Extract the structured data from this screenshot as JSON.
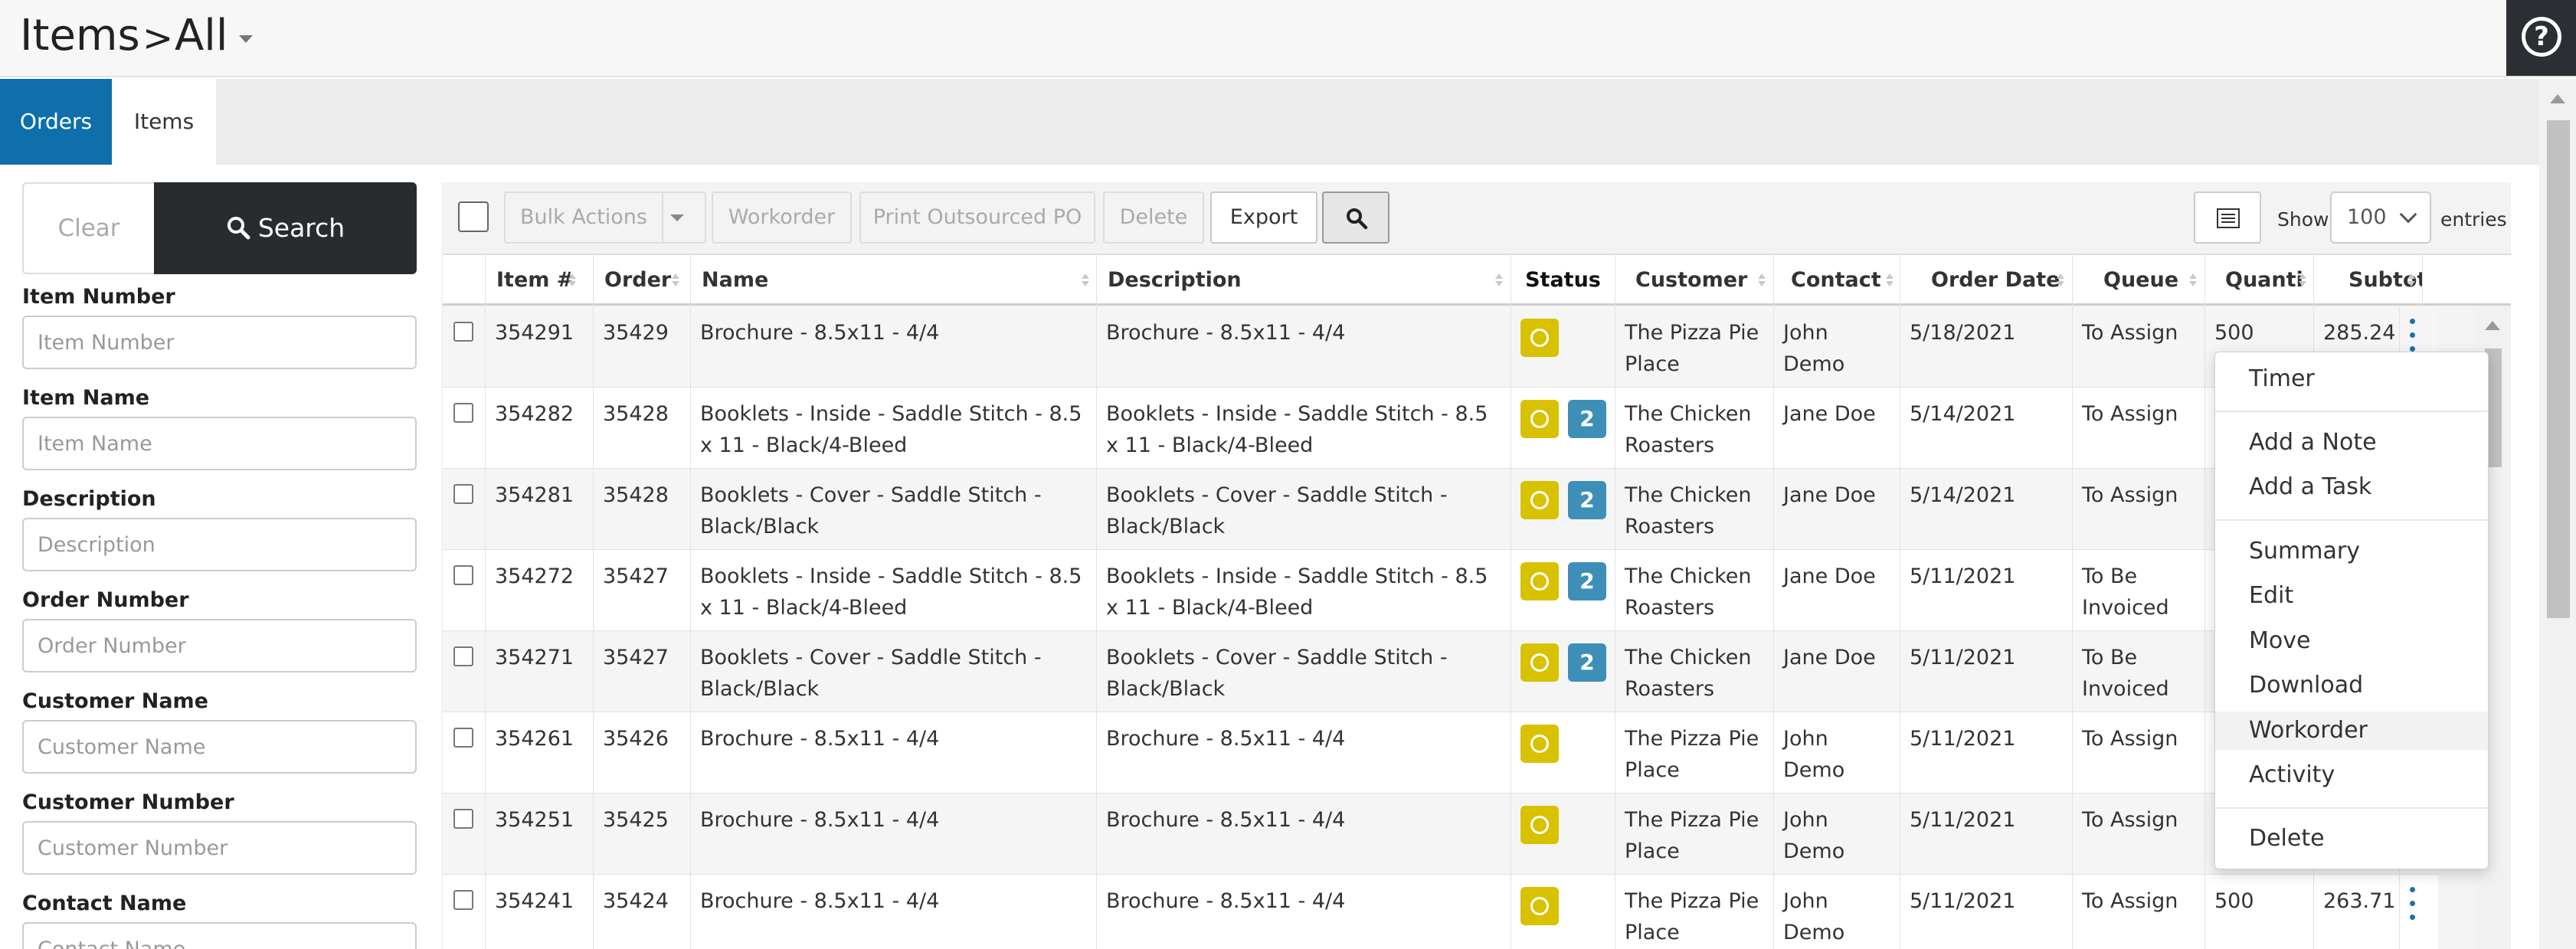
{
  "header": {
    "title": "Items",
    "breadcrumb_sep": ">",
    "breadcrumb_current": "All",
    "help_label": "?"
  },
  "tabs": [
    {
      "label": "Orders",
      "active": true
    },
    {
      "label": "Items",
      "active": false
    }
  ],
  "filters": {
    "clear_label": "Clear",
    "search_label": "Search",
    "fields": [
      {
        "label": "Item Number",
        "placeholder": "Item Number"
      },
      {
        "label": "Item Name",
        "placeholder": "Item Name"
      },
      {
        "label": "Description",
        "placeholder": "Description"
      },
      {
        "label": "Order Number",
        "placeholder": "Order Number"
      },
      {
        "label": "Customer Name",
        "placeholder": "Customer Name"
      },
      {
        "label": "Customer Number",
        "placeholder": "Customer Number"
      },
      {
        "label": "Contact Name",
        "placeholder": "Contact Name"
      }
    ]
  },
  "toolbar": {
    "bulk_actions": "Bulk Actions",
    "workorder": "Workorder",
    "print_outsourced_po": "Print Outsourced PO",
    "delete": "Delete",
    "export": "Export",
    "show_label": "Show",
    "show_value": "100",
    "entries_label": "entries"
  },
  "table": {
    "columns": [
      "Item #",
      "Order",
      "Name",
      "Description",
      "Status",
      "Customer",
      "Contact",
      "Order Date",
      "Queue",
      "Quanti",
      "Subtot"
    ],
    "rows": [
      {
        "item": "354291",
        "order": "35429",
        "name": "Brochure - 8.5x11 - 4/4",
        "description": "Brochure - 8.5x11 - 4/4",
        "count": "",
        "customer": "The Pizza Pie Place",
        "contact": "John Demo",
        "date": "5/18/2021",
        "queue": "To Assign",
        "qty": "500",
        "subtotal": "285.24"
      },
      {
        "item": "354282",
        "order": "35428",
        "name": "Booklets - Inside - Saddle Stitch - 8.5 x 11 - Black/4-Bleed",
        "description": "Booklets - Inside - Saddle Stitch - 8.5 x 11 - Black/4-Bleed",
        "count": "2",
        "customer": "The Chicken Roasters",
        "contact": "Jane Doe",
        "date": "5/14/2021",
        "queue": "To Assign",
        "qty": "",
        "subtotal": ""
      },
      {
        "item": "354281",
        "order": "35428",
        "name": "Booklets - Cover - Saddle Stitch - Black/Black",
        "description": "Booklets - Cover - Saddle Stitch - Black/Black",
        "count": "2",
        "customer": "The Chicken Roasters",
        "contact": "Jane Doe",
        "date": "5/14/2021",
        "queue": "To Assign",
        "qty": "",
        "subtotal": ""
      },
      {
        "item": "354272",
        "order": "35427",
        "name": "Booklets - Inside - Saddle Stitch - 8.5 x 11 - Black/4-Bleed",
        "description": "Booklets - Inside - Saddle Stitch - 8.5 x 11 - Black/4-Bleed",
        "count": "2",
        "customer": "The Chicken Roasters",
        "contact": "Jane Doe",
        "date": "5/11/2021",
        "queue": "To Be Invoiced",
        "qty": "",
        "subtotal": ""
      },
      {
        "item": "354271",
        "order": "35427",
        "name": "Booklets - Cover - Saddle Stitch - Black/Black",
        "description": "Booklets - Cover - Saddle Stitch - Black/Black",
        "count": "2",
        "customer": "The Chicken Roasters",
        "contact": "Jane Doe",
        "date": "5/11/2021",
        "queue": "To Be Invoiced",
        "qty": "",
        "subtotal": ""
      },
      {
        "item": "354261",
        "order": "35426",
        "name": "Brochure - 8.5x11 - 4/4",
        "description": "Brochure - 8.5x11 - 4/4",
        "count": "",
        "customer": "The Pizza Pie Place",
        "contact": "John Demo",
        "date": "5/11/2021",
        "queue": "To Assign",
        "qty": "",
        "subtotal": ""
      },
      {
        "item": "354251",
        "order": "35425",
        "name": "Brochure - 8.5x11 - 4/4",
        "description": "Brochure - 8.5x11 - 4/4",
        "count": "",
        "customer": "The Pizza Pie Place",
        "contact": "John Demo",
        "date": "5/11/2021",
        "queue": "To Assign",
        "qty": "",
        "subtotal": ""
      },
      {
        "item": "354241",
        "order": "35424",
        "name": "Brochure - 8.5x11 - 4/4",
        "description": "Brochure - 8.5x11 - 4/4",
        "count": "",
        "customer": "The Pizza Pie Place",
        "contact": "John Demo",
        "date": "5/11/2021",
        "queue": "To Assign",
        "qty": "500",
        "subtotal": "263.71"
      }
    ]
  },
  "context_menu": {
    "items": [
      "Timer",
      "Add a Note",
      "Add a Task",
      "Summary",
      "Edit",
      "Move",
      "Download",
      "Workorder",
      "Activity",
      "Delete"
    ],
    "hovered": "Workorder"
  },
  "colors": {
    "accent": "#0e6fab",
    "status_yellow": "#d8c200",
    "status_blue": "#3d8fb8",
    "dark": "#292c2f"
  }
}
